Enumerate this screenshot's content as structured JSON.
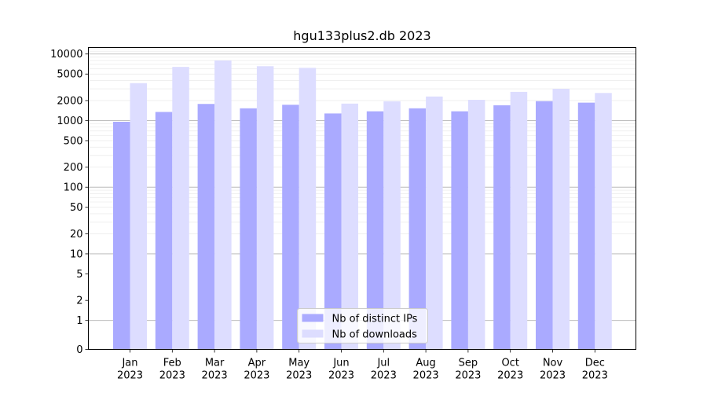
{
  "chart_data": {
    "type": "bar",
    "title": "hgu133plus2.db 2023",
    "xlabel": "",
    "ylabel": "",
    "y_scale": "symlog",
    "ylim": [
      0,
      12500
    ],
    "y_ticks": [
      {
        "value": 0,
        "label": "0"
      },
      {
        "value": 1,
        "label": "1"
      },
      {
        "value": 2,
        "label": "2"
      },
      {
        "value": 5,
        "label": "5"
      },
      {
        "value": 10,
        "label": "10"
      },
      {
        "value": 20,
        "label": "20"
      },
      {
        "value": 50,
        "label": "50"
      },
      {
        "value": 100,
        "label": "100"
      },
      {
        "value": 200,
        "label": "200"
      },
      {
        "value": 500,
        "label": "500"
      },
      {
        "value": 1000,
        "label": "1000"
      },
      {
        "value": 2000,
        "label": "2000"
      },
      {
        "value": 5000,
        "label": "5000"
      },
      {
        "value": 10000,
        "label": "10000"
      }
    ],
    "grid": true,
    "categories": [
      {
        "month": "Jan",
        "year": "2023"
      },
      {
        "month": "Feb",
        "year": "2023"
      },
      {
        "month": "Mar",
        "year": "2023"
      },
      {
        "month": "Apr",
        "year": "2023"
      },
      {
        "month": "May",
        "year": "2023"
      },
      {
        "month": "Jun",
        "year": "2023"
      },
      {
        "month": "Jul",
        "year": "2023"
      },
      {
        "month": "Aug",
        "year": "2023"
      },
      {
        "month": "Sep",
        "year": "2023"
      },
      {
        "month": "Oct",
        "year": "2023"
      },
      {
        "month": "Nov",
        "year": "2023"
      },
      {
        "month": "Dec",
        "year": "2023"
      }
    ],
    "series": [
      {
        "name": "Nb of distinct IPs",
        "color": "#aaaaff",
        "values": [
          960,
          1350,
          1780,
          1530,
          1730,
          1280,
          1380,
          1530,
          1380,
          1700,
          1960,
          1860
        ]
      },
      {
        "name": "Nb of downloads",
        "color": "#ddddff",
        "values": [
          3650,
          6400,
          8000,
          6550,
          6200,
          1800,
          1950,
          2300,
          2050,
          2700,
          3000,
          2600
        ]
      }
    ],
    "legend_position": "lower-center"
  }
}
